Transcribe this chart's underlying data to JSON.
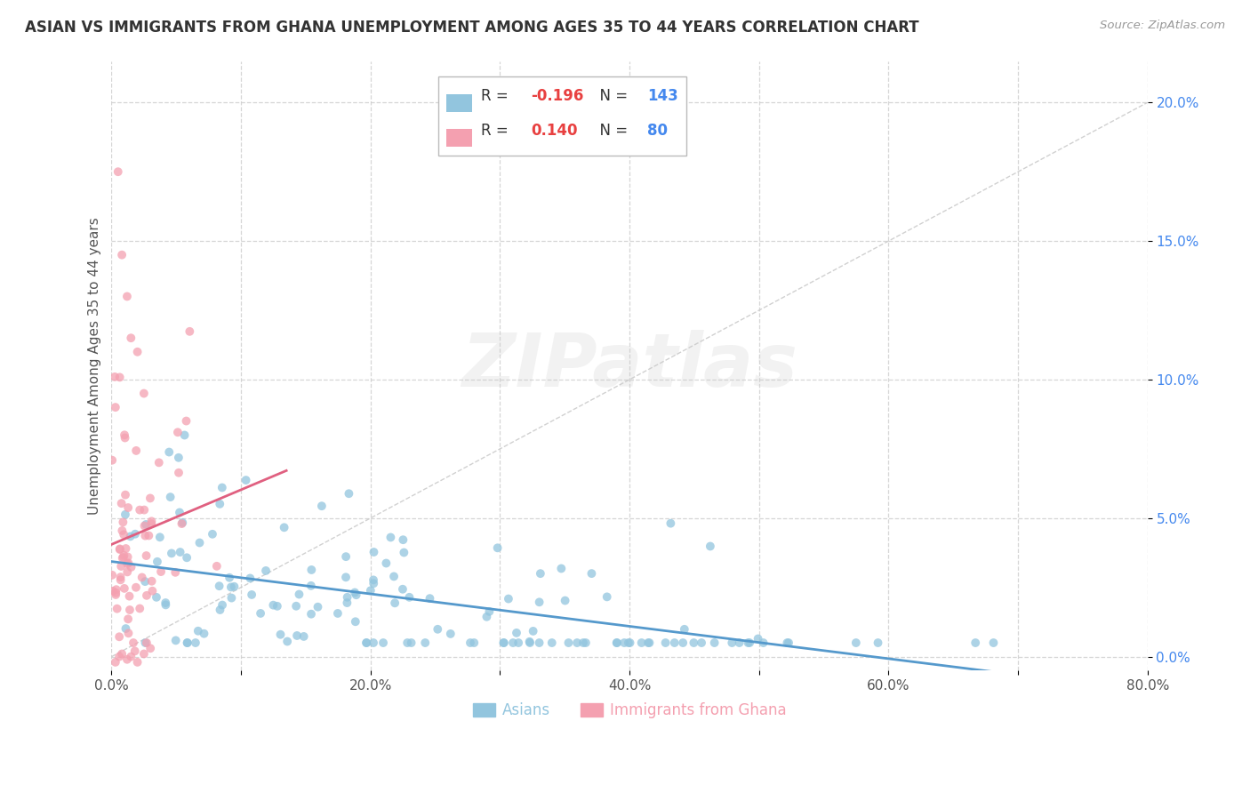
{
  "title": "ASIAN VS IMMIGRANTS FROM GHANA UNEMPLOYMENT AMONG AGES 35 TO 44 YEARS CORRELATION CHART",
  "source_text": "Source: ZipAtlas.com",
  "ylabel": "Unemployment Among Ages 35 to 44 years",
  "xlim": [
    0.0,
    0.8
  ],
  "ylim": [
    -0.005,
    0.215
  ],
  "xticks": [
    0.0,
    0.1,
    0.2,
    0.3,
    0.4,
    0.5,
    0.6,
    0.7,
    0.8
  ],
  "xticklabels": [
    "0.0%",
    "",
    "20.0%",
    "",
    "40.0%",
    "",
    "60.0%",
    "",
    "80.0%"
  ],
  "yticks": [
    0.0,
    0.05,
    0.1,
    0.15,
    0.2
  ],
  "yticklabels": [
    "0.0%",
    "5.0%",
    "10.0%",
    "15.0%",
    "20.0%"
  ],
  "asian_color": "#92C5DE",
  "ghana_color": "#F4A0B0",
  "asian_R": -0.196,
  "asian_N": 143,
  "ghana_R": 0.14,
  "ghana_N": 80,
  "legend_R_color_neg": "#E84040",
  "legend_R_color_pos": "#E84040",
  "legend_N_color": "#4488EE",
  "watermark_color": "#CCCCCC",
  "background_color": "#FFFFFF",
  "gridcolor": "#CCCCCC",
  "trendline_asian_color": "#5599CC",
  "trendline_ghana_color": "#E06080",
  "axis_color": "#AAAAAA",
  "ytick_color": "#4488EE",
  "xtick_color": "#555555"
}
